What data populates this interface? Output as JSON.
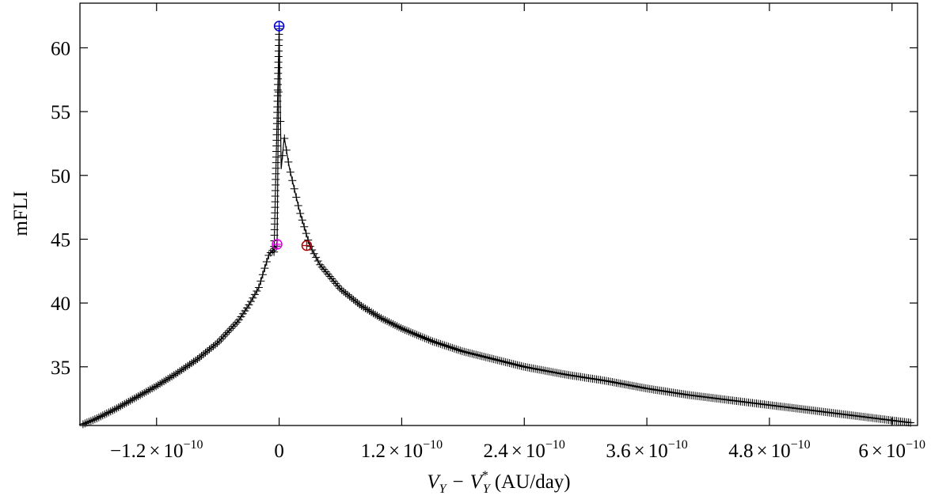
{
  "chart_data": {
    "type": "scatter",
    "xlabel": {
      "main": "V",
      "sub1": "Y",
      "minus": "−",
      "main2": "V",
      "sub2": "Y",
      "sup2": "*",
      "unit": "(AU/day)"
    },
    "ylabel": "mFLI",
    "xlim": [
      -1.95e-10,
      6.25e-10
    ],
    "ylim": [
      30.4,
      63.5
    ],
    "x_ticks": [
      {
        "value": -1.2e-10,
        "mant": "−1.2",
        "times": "×",
        "base": "10",
        "exp": "−10"
      },
      {
        "value": 0,
        "mant": "0",
        "times": "",
        "base": "",
        "exp": ""
      },
      {
        "value": 1.2e-10,
        "mant": "1.2",
        "times": "×",
        "base": "10",
        "exp": "−10"
      },
      {
        "value": 2.4e-10,
        "mant": "2.4",
        "times": "×",
        "base": "10",
        "exp": "−10"
      },
      {
        "value": 3.6e-10,
        "mant": "3.6",
        "times": "×",
        "base": "10",
        "exp": "−10"
      },
      {
        "value": 4.8e-10,
        "mant": "4.8",
        "times": "×",
        "base": "10",
        "exp": "−10"
      },
      {
        "value": 6e-10,
        "mant": "6",
        "times": "×",
        "base": "10",
        "exp": "−10"
      }
    ],
    "y_ticks": [
      35,
      40,
      45,
      50,
      55,
      60
    ],
    "grid": false,
    "series": [
      {
        "style": "plus-markers-with-line",
        "color": "#000000",
        "points": [
          [
            -1.92e-10,
            30.5
          ],
          [
            -1.8e-10,
            30.9
          ],
          [
            -1.6e-10,
            31.7
          ],
          [
            -1.4e-10,
            32.6
          ],
          [
            -1.2e-10,
            33.5
          ],
          [
            -1e-10,
            34.5
          ],
          [
            -8e-11,
            35.6
          ],
          [
            -6e-11,
            36.9
          ],
          [
            -4e-11,
            38.6
          ],
          [
            -3e-11,
            39.8
          ],
          [
            -2e-11,
            41.2
          ],
          [
            -1e-11,
            43.8
          ],
          [
            -2e-12,
            44.5
          ],
          [
            0,
            61.7
          ],
          [
            2e-12,
            50.5
          ],
          [
            5e-12,
            53.0
          ],
          [
            1e-11,
            50.6
          ],
          [
            2e-11,
            47.2
          ],
          [
            3e-11,
            44.5
          ],
          [
            4e-11,
            43.0
          ],
          [
            6e-11,
            41.1
          ],
          [
            8e-11,
            39.8
          ],
          [
            1e-10,
            38.8
          ],
          [
            1.2e-10,
            38.0
          ],
          [
            1.5e-10,
            37.0
          ],
          [
            1.8e-10,
            36.2
          ],
          [
            2.1e-10,
            35.6
          ],
          [
            2.4e-10,
            35.0
          ],
          [
            2.8e-10,
            34.4
          ],
          [
            3.2e-10,
            33.9
          ],
          [
            3.6e-10,
            33.3
          ],
          [
            4e-10,
            32.8
          ],
          [
            4.4e-10,
            32.4
          ],
          [
            4.8e-10,
            32.0
          ],
          [
            5.2e-10,
            31.6
          ],
          [
            5.6e-10,
            31.2
          ],
          [
            6e-10,
            30.8
          ],
          [
            6.2e-10,
            30.6
          ]
        ]
      }
    ],
    "highlights": [
      {
        "x": 0,
        "y": 61.7,
        "color": "#0000cc"
      },
      {
        "x": -2e-12,
        "y": 44.6,
        "color": "#e000e0"
      },
      {
        "x": 2.7e-11,
        "y": 44.5,
        "color": "#aa0000"
      }
    ]
  }
}
